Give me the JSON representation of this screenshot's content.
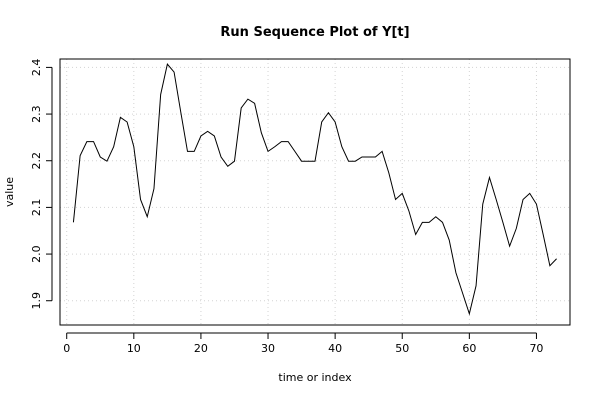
{
  "chart_data": {
    "type": "line",
    "title": "Run Sequence Plot of Y[t]",
    "xlabel": "time or index",
    "ylabel": "value",
    "xlim": [
      -1,
      75
    ],
    "ylim": [
      1.848,
      2.418
    ],
    "x_ticks": [
      0,
      10,
      20,
      30,
      40,
      50,
      60,
      70
    ],
    "x_tick_labels": [
      "0",
      "10",
      "20",
      "30",
      "40",
      "50",
      "60",
      "70"
    ],
    "y_ticks": [
      1.9,
      2.0,
      2.1,
      2.2,
      2.3,
      2.4
    ],
    "y_tick_labels": [
      "1.9",
      "2.0",
      "2.1",
      "2.2",
      "2.3",
      "2.4"
    ],
    "grid": true,
    "series": [
      {
        "color": "#000000",
        "x": [
          1,
          2,
          3,
          4,
          5,
          6,
          7,
          8,
          9,
          10,
          11,
          12,
          13,
          14,
          15,
          16,
          17,
          18,
          19,
          20,
          21,
          22,
          23,
          24,
          25,
          26,
          27,
          28,
          29,
          30,
          31,
          32,
          33,
          34,
          35,
          36,
          37,
          38,
          39,
          40,
          41,
          42,
          43,
          44,
          45,
          46,
          47,
          48,
          49,
          50,
          51,
          52,
          53,
          54,
          55,
          56,
          57,
          58,
          59,
          60,
          61,
          62,
          63,
          64,
          65,
          66,
          67,
          68,
          69,
          70,
          71,
          72,
          73
        ],
        "y": [
          2.068,
          2.211,
          2.241,
          2.241,
          2.208,
          2.199,
          2.23,
          2.293,
          2.283,
          2.23,
          2.117,
          2.08,
          2.14,
          2.342,
          2.407,
          2.39,
          2.304,
          2.22,
          2.22,
          2.253,
          2.263,
          2.253,
          2.208,
          2.188,
          2.199,
          2.313,
          2.332,
          2.323,
          2.26,
          2.22,
          2.23,
          2.241,
          2.241,
          2.22,
          2.199,
          2.199,
          2.199,
          2.283,
          2.303,
          2.283,
          2.23,
          2.199,
          2.199,
          2.208,
          2.208,
          2.208,
          2.22,
          2.174,
          2.117,
          2.13,
          2.092,
          2.042,
          2.068,
          2.068,
          2.08,
          2.068,
          2.03,
          1.96,
          1.916,
          1.872,
          1.932,
          2.107,
          2.164,
          2.117,
          2.068,
          2.017,
          2.055,
          2.117,
          2.13,
          2.107,
          2.042,
          1.975,
          1.99
        ]
      }
    ]
  }
}
